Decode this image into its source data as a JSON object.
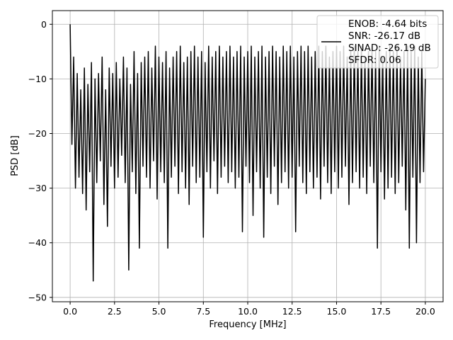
{
  "chart_data": {
    "type": "line",
    "title": "",
    "xlabel": "Frequency [MHz]",
    "ylabel": "PSD [dB]",
    "xlim": [
      -1.0,
      21.0
    ],
    "ylim": [
      -50.8,
      2.5
    ],
    "xticks": [
      0.0,
      2.5,
      5.0,
      7.5,
      10.0,
      12.5,
      15.0,
      17.5,
      20.0
    ],
    "xtick_labels": [
      "0.0",
      "2.5",
      "5.0",
      "7.5",
      "10.0",
      "12.5",
      "15.0",
      "17.5",
      "20.0"
    ],
    "yticks": [
      0,
      -10,
      -20,
      -30,
      -40,
      -50
    ],
    "ytick_labels": [
      "0",
      "−10",
      "−20",
      "−30",
      "−40",
      "−50"
    ],
    "grid": true,
    "legend_position": "top-right",
    "legend": [
      "ENOB: -4.64 bits",
      "SNR: -26.17 dB",
      "SINAD: -26.19 dB",
      "SFDR: 0.06"
    ],
    "series": [
      {
        "name": "PSD",
        "color": "#000000",
        "x_start": 0.0,
        "x_step": 0.1,
        "values": [
          0,
          -22,
          -6,
          -30,
          -9,
          -28,
          -12,
          -31,
          -8,
          -34,
          -11,
          -27,
          -7,
          -47,
          -10,
          -29,
          -9,
          -25,
          -6,
          -33,
          -12,
          -37,
          -8,
          -26,
          -9,
          -30,
          -7,
          -28,
          -10,
          -24,
          -6,
          -29,
          -8,
          -45,
          -11,
          -27,
          -5,
          -31,
          -9,
          -41,
          -7,
          -26,
          -6,
          -28,
          -5,
          -30,
          -8,
          -25,
          -4,
          -32,
          -6,
          -27,
          -7,
          -29,
          -5,
          -41,
          -8,
          -28,
          -6,
          -26,
          -5,
          -31,
          -4,
          -27,
          -7,
          -30,
          -6,
          -33,
          -5,
          -26,
          -4,
          -29,
          -6,
          -28,
          -5,
          -39,
          -7,
          -27,
          -4,
          -30,
          -6,
          -25,
          -5,
          -31,
          -4,
          -28,
          -6,
          -26,
          -5,
          -29,
          -4,
          -27,
          -6,
          -30,
          -5,
          -28,
          -4,
          -38,
          -6,
          -26,
          -5,
          -29,
          -4,
          -35,
          -6,
          -27,
          -5,
          -30,
          -4,
          -39,
          -6,
          -28,
          -5,
          -31,
          -4,
          -26,
          -5,
          -33,
          -6,
          -29,
          -4,
          -27,
          -5,
          -30,
          -4,
          -28,
          -6,
          -38,
          -5,
          -26,
          -4,
          -29,
          -5,
          -31,
          -4,
          -27,
          -6,
          -30,
          -5,
          -28,
          -4,
          -32,
          -5,
          -26,
          -4,
          -29,
          -6,
          -31,
          -5,
          -27,
          -4,
          -30,
          -5,
          -28,
          -4,
          -26,
          -6,
          -33,
          -5,
          -29,
          -4,
          -27,
          -5,
          -30,
          -4,
          -28,
          -6,
          -31,
          -5,
          -26,
          -4,
          -29,
          -5,
          -41,
          -4,
          -27,
          -6,
          -32,
          -5,
          -30,
          -4,
          -28,
          -5,
          -31,
          -4,
          -29,
          -6,
          -26,
          -5,
          -34,
          -4,
          -41,
          -5,
          -28,
          -4,
          -40,
          -6,
          -29,
          -5,
          -27,
          -10
        ]
      }
    ]
  }
}
